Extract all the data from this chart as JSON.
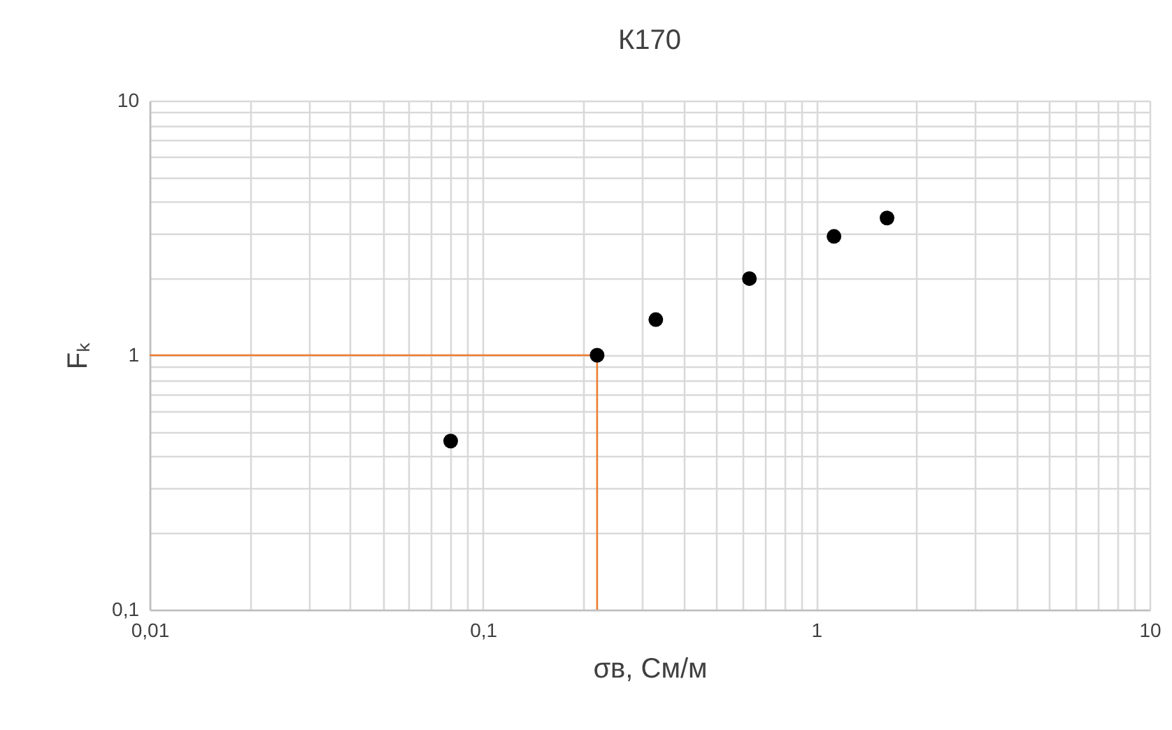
{
  "chart_data": {
    "type": "scatter",
    "title": "К170",
    "xlabel": "σв, См/м",
    "ylabel": "Fₖ",
    "log": "xy",
    "grid": true,
    "xlim": [
      0.01,
      10
    ],
    "ylim": [
      0.1,
      10
    ],
    "xticks": [
      {
        "value": 0.01,
        "label": "0,01"
      },
      {
        "value": 0.1,
        "label": "0,1"
      },
      1,
      10
    ],
    "yticks": [
      {
        "value": 0.1,
        "label": "0,1"
      },
      1,
      10
    ],
    "series": [
      {
        "type": "line",
        "color": "#ed7d31",
        "x": [
          0.01,
          0.22,
          0.22
        ],
        "values": [
          1,
          1,
          0.1
        ]
      },
      {
        "marker": "circle",
        "color": "#000000",
        "x": [
          0.08,
          0.22,
          0.33,
          0.63,
          1.13,
          1.63
        ],
        "values": [
          0.46,
          1.0,
          1.38,
          2.0,
          2.93,
          3.46
        ]
      }
    ]
  }
}
